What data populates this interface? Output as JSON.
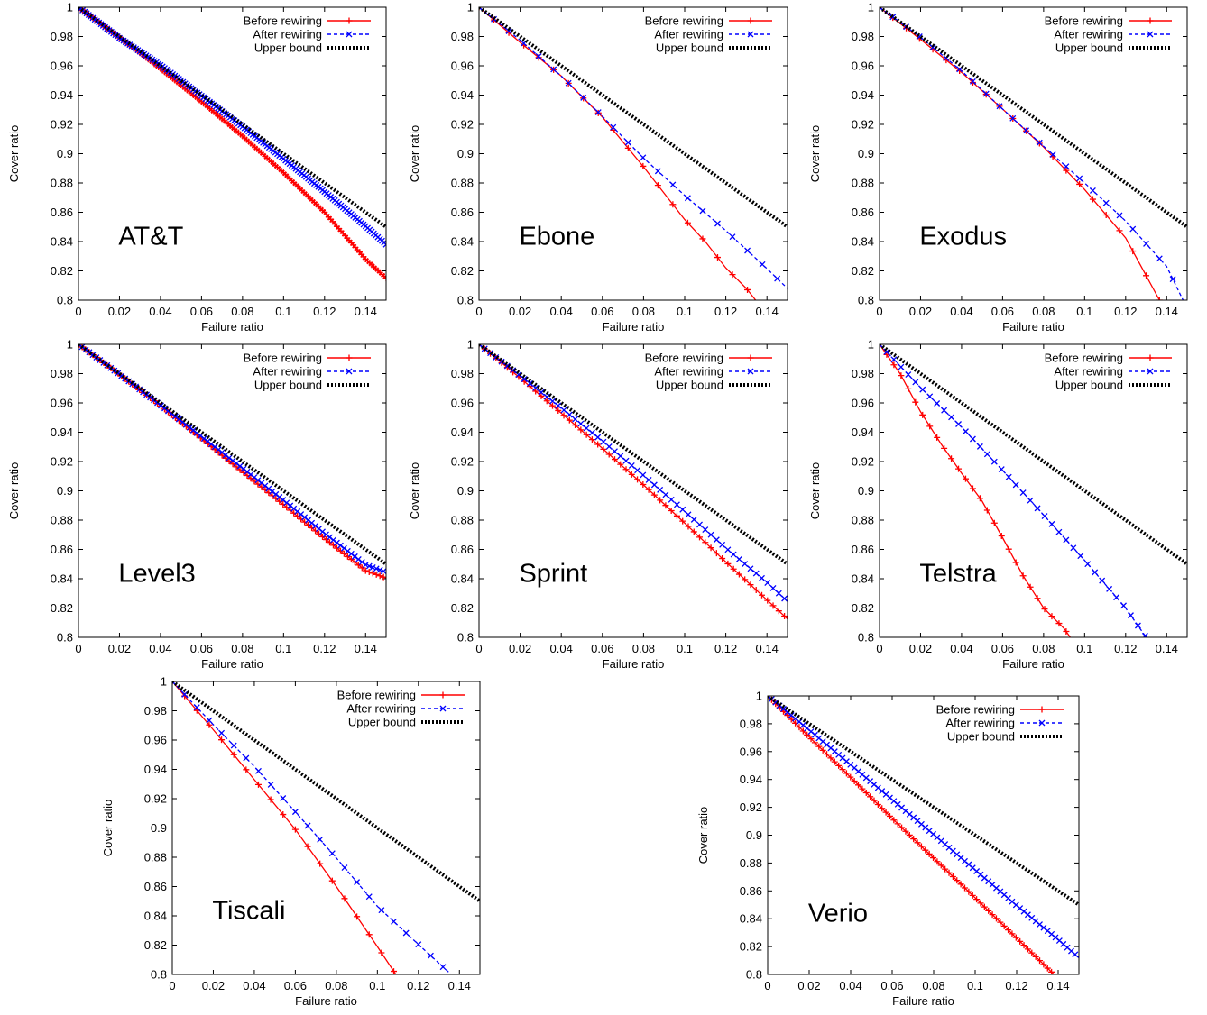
{
  "colors": {
    "before": "#ff0000",
    "after": "#0000ff",
    "upper": "#000000",
    "frame": "#000000",
    "background": "#ffffff"
  },
  "legend": {
    "before": "Before rewiring",
    "after": "After rewiring",
    "upper": "Upper bound"
  },
  "chart_data": [
    {
      "type": "line",
      "network_label": "AT&T",
      "xlabel": "Failure ratio",
      "ylabel": "Cover ratio",
      "xlim": [
        0,
        0.15
      ],
      "ylim": [
        0.8,
        1
      ],
      "grid": false,
      "legend_position": "top-right",
      "xticks": [
        "0",
        "0.02",
        "0.04",
        "0.06",
        "0.08",
        "0.1",
        "0.12",
        "0.14"
      ],
      "yticks": [
        "0.8",
        "0.82",
        "0.84",
        "0.86",
        "0.88",
        "0.9",
        "0.92",
        "0.94",
        "0.96",
        "0.98",
        "1"
      ],
      "marker_step": 0.001,
      "series": [
        {
          "name": "Before rewiring",
          "x": [
            0,
            0.02,
            0.04,
            0.06,
            0.08,
            0.1,
            0.12,
            0.14,
            0.15
          ],
          "y": [
            1,
            0.9795,
            0.958,
            0.9355,
            0.912,
            0.887,
            0.86,
            0.828,
            0.815
          ]
        },
        {
          "name": "After rewiring",
          "x": [
            0,
            0.02,
            0.04,
            0.06,
            0.08,
            0.1,
            0.12,
            0.14,
            0.15
          ],
          "y": [
            1,
            0.979,
            0.9605,
            0.9395,
            0.9185,
            0.8965,
            0.874,
            0.8505,
            0.838
          ]
        },
        {
          "name": "Upper bound",
          "x": [
            0,
            0.15
          ],
          "y": [
            1,
            0.85
          ]
        }
      ]
    },
    {
      "type": "line",
      "network_label": "Ebone",
      "xlabel": "Failure ratio",
      "ylabel": "Cover ratio",
      "xlim": [
        0,
        0.15
      ],
      "ylim": [
        0.8,
        1
      ],
      "grid": false,
      "legend_position": "top-right",
      "xticks": [
        "0",
        "0.02",
        "0.04",
        "0.06",
        "0.08",
        "0.1",
        "0.12",
        "0.14"
      ],
      "yticks": [
        "0.8",
        "0.82",
        "0.84",
        "0.86",
        "0.88",
        "0.9",
        "0.92",
        "0.94",
        "0.96",
        "0.98",
        "1"
      ],
      "marker_step": 0.00725,
      "series": [
        {
          "name": "Before rewiring",
          "x": [
            0,
            0.02,
            0.04,
            0.06,
            0.08,
            0.1,
            0.11,
            0.12,
            0.13,
            0.1345
          ],
          "y": [
            1,
            0.976,
            0.953,
            0.925,
            0.891,
            0.855,
            0.84,
            0.822,
            0.808,
            0.8
          ]
        },
        {
          "name": "After rewiring",
          "x": [
            0,
            0.02,
            0.04,
            0.06,
            0.08,
            0.1,
            0.12,
            0.14,
            0.15
          ],
          "y": [
            1,
            0.9775,
            0.953,
            0.9255,
            0.897,
            0.8715,
            0.8475,
            0.8215,
            0.808
          ]
        },
        {
          "name": "Upper bound",
          "x": [
            0,
            0.15
          ],
          "y": [
            1,
            0.85
          ]
        }
      ]
    },
    {
      "type": "line",
      "network_label": "Exodus",
      "xlabel": "Failure ratio",
      "ylabel": "Cover ratio",
      "xlim": [
        0,
        0.15
      ],
      "ylim": [
        0.8,
        1
      ],
      "grid": false,
      "legend_position": "top-right",
      "xticks": [
        "0",
        "0.02",
        "0.04",
        "0.06",
        "0.08",
        "0.1",
        "0.12",
        "0.14"
      ],
      "yticks": [
        "0.8",
        "0.82",
        "0.84",
        "0.86",
        "0.88",
        "0.9",
        "0.92",
        "0.94",
        "0.96",
        "0.98",
        "1"
      ],
      "marker_step": 0.0065,
      "series": [
        {
          "name": "Before rewiring",
          "x": [
            0,
            0.02,
            0.04,
            0.06,
            0.08,
            0.1,
            0.12,
            0.1365
          ],
          "y": [
            1,
            0.978,
            0.9555,
            0.9305,
            0.9045,
            0.8755,
            0.8425,
            0.8
          ]
        },
        {
          "name": "After rewiring",
          "x": [
            0,
            0.02,
            0.04,
            0.06,
            0.08,
            0.1,
            0.12,
            0.14,
            0.148
          ],
          "y": [
            1,
            0.9795,
            0.9565,
            0.9305,
            0.905,
            0.88,
            0.854,
            0.823,
            0.8
          ]
        },
        {
          "name": "Upper bound",
          "x": [
            0,
            0.15
          ],
          "y": [
            1,
            0.85
          ]
        }
      ]
    },
    {
      "type": "line",
      "network_label": "Level3",
      "xlabel": "Failure ratio",
      "ylabel": "Cover ratio",
      "xlim": [
        0,
        0.15
      ],
      "ylim": [
        0.8,
        1
      ],
      "grid": false,
      "legend_position": "top-right",
      "xticks": [
        "0",
        "0.02",
        "0.04",
        "0.06",
        "0.08",
        "0.1",
        "0.12",
        "0.14"
      ],
      "yticks": [
        "0.8",
        "0.82",
        "0.84",
        "0.86",
        "0.88",
        "0.9",
        "0.92",
        "0.94",
        "0.96",
        "0.98",
        "1"
      ],
      "marker_step": 0.00175,
      "series": [
        {
          "name": "Before rewiring",
          "x": [
            0,
            0.02,
            0.04,
            0.06,
            0.08,
            0.1,
            0.12,
            0.14,
            0.15
          ],
          "y": [
            1,
            0.9795,
            0.958,
            0.9355,
            0.913,
            0.8905,
            0.8675,
            0.8455,
            0.8405
          ]
        },
        {
          "name": "After rewiring",
          "x": [
            0,
            0.02,
            0.04,
            0.06,
            0.08,
            0.1,
            0.12,
            0.14,
            0.15
          ],
          "y": [
            1,
            0.9795,
            0.9585,
            0.937,
            0.9155,
            0.8935,
            0.871,
            0.8495,
            0.8445
          ]
        },
        {
          "name": "Upper bound",
          "x": [
            0,
            0.15
          ],
          "y": [
            1,
            0.85
          ]
        }
      ]
    },
    {
      "type": "line",
      "network_label": "Sprint",
      "xlabel": "Failure ratio",
      "ylabel": "Cover ratio",
      "xlim": [
        0,
        0.15
      ],
      "ylim": [
        0.8,
        1
      ],
      "grid": false,
      "legend_position": "top-right",
      "xticks": [
        "0",
        "0.02",
        "0.04",
        "0.06",
        "0.08",
        "0.1",
        "0.12",
        "0.14"
      ],
      "yticks": [
        "0.8",
        "0.82",
        "0.84",
        "0.86",
        "0.88",
        "0.9",
        "0.92",
        "0.94",
        "0.96",
        "0.98",
        "1"
      ],
      "marker_step": 0.00275,
      "series": [
        {
          "name": "Before rewiring",
          "x": [
            0,
            0.02,
            0.04,
            0.06,
            0.08,
            0.1,
            0.12,
            0.14,
            0.15
          ],
          "y": [
            1,
            0.977,
            0.953,
            0.929,
            0.904,
            0.878,
            0.8515,
            0.8255,
            0.8125
          ]
        },
        {
          "name": "After rewiring",
          "x": [
            0,
            0.02,
            0.04,
            0.06,
            0.08,
            0.1,
            0.12,
            0.14,
            0.15
          ],
          "y": [
            1,
            0.9785,
            0.9565,
            0.934,
            0.9105,
            0.886,
            0.861,
            0.8375,
            0.8245
          ]
        },
        {
          "name": "Upper bound",
          "x": [
            0,
            0.15
          ],
          "y": [
            1,
            0.85
          ]
        }
      ]
    },
    {
      "type": "line",
      "network_label": "Telstra",
      "xlabel": "Failure ratio",
      "ylabel": "Cover ratio",
      "xlim": [
        0,
        0.15
      ],
      "ylim": [
        0.8,
        1
      ],
      "grid": false,
      "legend_position": "top-right",
      "xticks": [
        "0",
        "0.02",
        "0.04",
        "0.06",
        "0.08",
        "0.1",
        "0.12",
        "0.14"
      ],
      "yticks": [
        "0.8",
        "0.82",
        "0.84",
        "0.86",
        "0.88",
        "0.9",
        "0.92",
        "0.94",
        "0.96",
        "0.98",
        "1"
      ],
      "marker_step": 0.0035,
      "series": [
        {
          "name": "Before rewiring",
          "x": [
            0,
            0.01,
            0.02,
            0.03,
            0.04,
            0.05,
            0.06,
            0.07,
            0.08,
            0.09,
            0.093
          ],
          "y": [
            1,
            0.98,
            0.954,
            0.932,
            0.912,
            0.893,
            0.868,
            0.842,
            0.82,
            0.806,
            0.8
          ]
        },
        {
          "name": "After rewiring",
          "x": [
            0,
            0.02,
            0.04,
            0.06,
            0.08,
            0.1,
            0.12,
            0.13
          ],
          "y": [
            1,
            0.9705,
            0.9435,
            0.914,
            0.8835,
            0.8525,
            0.82,
            0.8
          ]
        },
        {
          "name": "Upper bound",
          "x": [
            0,
            0.15
          ],
          "y": [
            1,
            0.85
          ]
        }
      ]
    },
    {
      "type": "line",
      "network_label": "Tiscali",
      "xlabel": "Failure ratio",
      "ylabel": "Cover ratio",
      "xlim": [
        0,
        0.15
      ],
      "ylim": [
        0.8,
        1
      ],
      "grid": false,
      "legend_position": "top-right",
      "xticks": [
        "0",
        "0.02",
        "0.04",
        "0.06",
        "0.08",
        "0.1",
        "0.12",
        "0.14"
      ],
      "yticks": [
        "0.8",
        "0.82",
        "0.84",
        "0.86",
        "0.88",
        "0.9",
        "0.92",
        "0.94",
        "0.96",
        "0.98",
        "1"
      ],
      "marker_step": 0.006,
      "series": [
        {
          "name": "Before rewiring",
          "x": [
            0,
            0.02,
            0.04,
            0.06,
            0.08,
            0.1,
            0.109
          ],
          "y": [
            1,
            0.967,
            0.933,
            0.899,
            0.86,
            0.819,
            0.8
          ]
        },
        {
          "name": "After rewiring",
          "x": [
            0,
            0.02,
            0.04,
            0.06,
            0.08,
            0.1,
            0.12,
            0.136
          ],
          "y": [
            1,
            0.9705,
            0.942,
            0.911,
            0.8795,
            0.8465,
            0.8205,
            0.8
          ]
        },
        {
          "name": "Upper bound",
          "x": [
            0,
            0.15
          ],
          "y": [
            1,
            0.85
          ]
        }
      ]
    },
    {
      "type": "line",
      "network_label": "Verio",
      "xlabel": "Failure ratio",
      "ylabel": "Cover ratio",
      "xlim": [
        0,
        0.15
      ],
      "ylim": [
        0.8,
        1
      ],
      "grid": false,
      "legend_position": "top-right",
      "xticks": [
        "0",
        "0.02",
        "0.04",
        "0.06",
        "0.08",
        "0.1",
        "0.12",
        "0.14"
      ],
      "yticks": [
        "0.8",
        "0.82",
        "0.84",
        "0.86",
        "0.88",
        "0.9",
        "0.92",
        "0.94",
        "0.96",
        "0.98",
        "1"
      ],
      "marker_step": 0.0019,
      "series": [
        {
          "name": "Before rewiring",
          "x": [
            0,
            0.02,
            0.04,
            0.06,
            0.08,
            0.1,
            0.12,
            0.138
          ],
          "y": [
            1,
            0.9705,
            0.9415,
            0.912,
            0.8835,
            0.855,
            0.826,
            0.8
          ]
        },
        {
          "name": "After rewiring",
          "x": [
            0,
            0.02,
            0.04,
            0.06,
            0.08,
            0.1,
            0.12,
            0.14,
            0.15
          ],
          "y": [
            1,
            0.9755,
            0.9505,
            0.9255,
            0.9005,
            0.875,
            0.8495,
            0.825,
            0.812
          ]
        },
        {
          "name": "Upper bound",
          "x": [
            0,
            0.15
          ],
          "y": [
            1,
            0.85
          ]
        }
      ]
    }
  ]
}
